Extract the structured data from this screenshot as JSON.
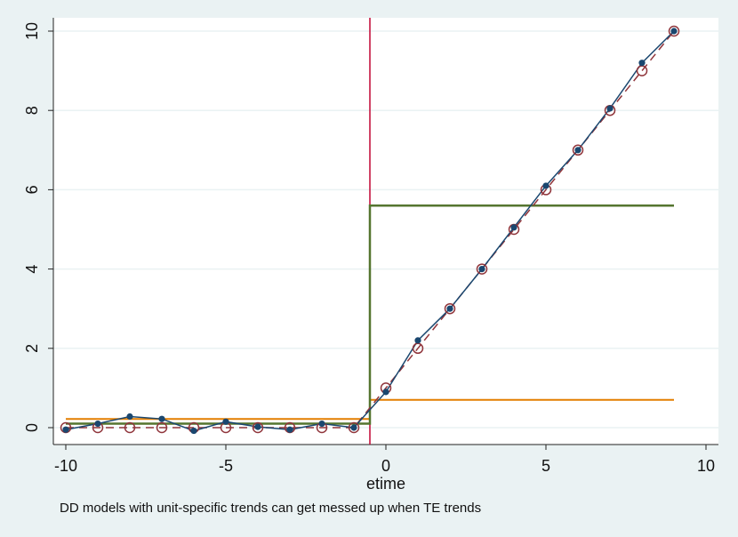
{
  "chart_data": {
    "type": "line",
    "title": "",
    "xlabel": "etime",
    "ylabel": "",
    "note": "DD models with unit-specific trends can get messed up when TE trends",
    "xlim": [
      -10,
      10
    ],
    "ylim": [
      0,
      10
    ],
    "x_ticks": [
      -10,
      -5,
      0,
      5,
      10
    ],
    "y_ticks": [
      0,
      2,
      4,
      6,
      8,
      10
    ],
    "grid": "horizontal",
    "legend": "none",
    "colors": {
      "observed": "#1a476f",
      "fitted": "#90353b",
      "step_green": "#55752f",
      "step_orange": "#e37e00",
      "vline": "#c10534",
      "plot_bg": "#ffffff",
      "page_bg": "#eaf2f3"
    },
    "series": [
      {
        "x": [
          -10,
          -9,
          -8,
          -7,
          -6,
          -5,
          -4,
          -3,
          -2,
          -1,
          0,
          1,
          2,
          3,
          4,
          5,
          6,
          7,
          8,
          9
        ],
        "values": [
          -0.05,
          0.1,
          0.28,
          0.22,
          -0.08,
          0.15,
          0.02,
          -0.05,
          0.1,
          0.0,
          0.9,
          2.2,
          3.0,
          4.0,
          5.05,
          6.1,
          7.0,
          8.05,
          9.2,
          10.0
        ]
      },
      {
        "x": [
          -10,
          -9,
          -8,
          -7,
          -6,
          -5,
          -4,
          -3,
          -2,
          -1,
          0,
          1,
          2,
          3,
          4,
          5,
          6,
          7,
          8,
          9
        ],
        "values": [
          0,
          0,
          0,
          0,
          0,
          0,
          0,
          0,
          0,
          0,
          1,
          2,
          3,
          4,
          5,
          6,
          7,
          8,
          9,
          10
        ]
      },
      {
        "x": [
          -10,
          -0.5,
          -0.5,
          9
        ],
        "values": [
          0.1,
          0.1,
          5.6,
          5.6
        ]
      },
      {
        "x": [
          -10,
          -0.5,
          -0.5,
          9
        ],
        "values": [
          0.22,
          0.22,
          0.7,
          0.7
        ]
      }
    ],
    "vline_x": -0.5
  }
}
